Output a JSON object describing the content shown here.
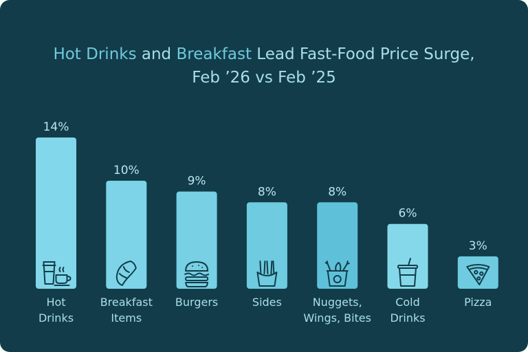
{
  "chart_data": {
    "type": "bar",
    "title_parts": [
      {
        "text": "Hot Drinks",
        "highlight": true
      },
      {
        "text": " and ",
        "highlight": false
      },
      {
        "text": "Breakfast",
        "highlight": true
      },
      {
        "text": " Lead Fast-Food Price Surge,",
        "highlight": false
      }
    ],
    "title_line2": "Feb ’26 vs Feb ’25",
    "categories": [
      {
        "label": [
          "Hot",
          "Drinks"
        ],
        "icon": "coffee-cup-icon"
      },
      {
        "label": [
          "Breakfast",
          "Items"
        ],
        "icon": "croissant-icon"
      },
      {
        "label": [
          "Burgers"
        ],
        "icon": "burger-icon"
      },
      {
        "label": [
          "Sides"
        ],
        "icon": "fries-icon"
      },
      {
        "label": [
          "Nuggets,",
          "Wings, Bites"
        ],
        "icon": "nuggets-bucket-icon"
      },
      {
        "label": [
          "Cold",
          "Drinks"
        ],
        "icon": "cold-drink-icon"
      },
      {
        "label": [
          "Pizza"
        ],
        "icon": "pizza-slice-icon"
      }
    ],
    "values": [
      14,
      10,
      9,
      8,
      8,
      6,
      3
    ],
    "value_labels": [
      "14%",
      "10%",
      "9%",
      "8%",
      "8%",
      "6%",
      "3%"
    ],
    "unit": "%",
    "ylim": [
      0,
      14
    ],
    "grid": false,
    "legend": "none",
    "colors": {
      "background": "#123c49",
      "bar": [
        "#82d7ea",
        "#7dd4e8",
        "#77d0e4",
        "#6ecbe0",
        "#5ec1d9",
        "#85d8ea",
        "#6ecbe0"
      ],
      "icon": "#123c49",
      "title": "#a9dfe9",
      "title_highlight": "#6fc9df",
      "labels": "#a9dfe9"
    }
  }
}
